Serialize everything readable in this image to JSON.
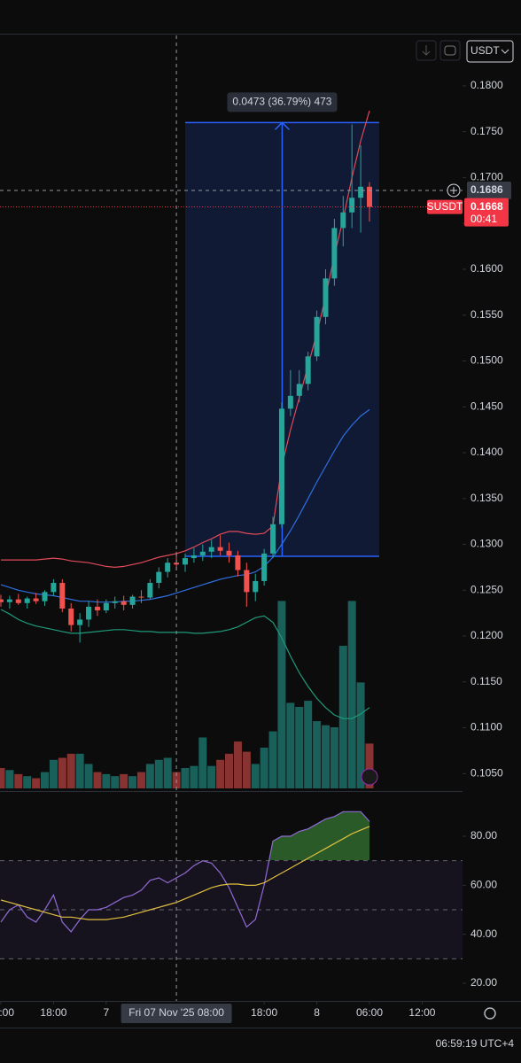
{
  "header": {
    "currency": "USDT"
  },
  "footer": {
    "clock": "06:59:19 UTC+4"
  },
  "chart_data": [
    {
      "type": "candlestick",
      "x": [
        0,
        1,
        2,
        3,
        4,
        5,
        6,
        7,
        8,
        9,
        10,
        11,
        12,
        13,
        14,
        15,
        16,
        17,
        18,
        19,
        20,
        21,
        22,
        23,
        24,
        25,
        26,
        27,
        28,
        29,
        30,
        31,
        32,
        33,
        34,
        35,
        36,
        37,
        38,
        39,
        40,
        41,
        42
      ],
      "open": [
        0.124,
        0.1237,
        0.124,
        0.1236,
        0.1241,
        0.1238,
        0.1248,
        0.1258,
        0.123,
        0.1212,
        0.1218,
        0.1232,
        0.1228,
        0.1236,
        0.1238,
        0.1234,
        0.1243,
        0.1242,
        0.1258,
        0.127,
        0.128,
        0.1278,
        0.1285,
        0.1288,
        0.1292,
        0.1297,
        0.1293,
        0.1288,
        0.1272,
        0.1248,
        0.126,
        0.129,
        0.1322,
        0.1448,
        0.1462,
        0.1475,
        0.1505,
        0.1548,
        0.159,
        0.1645,
        0.1662,
        0.1678,
        0.169
      ],
      "high": [
        0.1245,
        0.1244,
        0.1246,
        0.1243,
        0.1247,
        0.125,
        0.1262,
        0.1262,
        0.1236,
        0.1225,
        0.1238,
        0.124,
        0.124,
        0.1243,
        0.1244,
        0.1245,
        0.125,
        0.1262,
        0.1275,
        0.1285,
        0.1292,
        0.129,
        0.1296,
        0.13,
        0.1305,
        0.131,
        0.1302,
        0.1293,
        0.128,
        0.1268,
        0.1295,
        0.133,
        0.1455,
        0.149,
        0.149,
        0.151,
        0.1555,
        0.16,
        0.1655,
        0.168,
        0.1758,
        0.1735,
        0.1695
      ],
      "low": [
        0.1232,
        0.123,
        0.1234,
        0.123,
        0.1235,
        0.1233,
        0.1244,
        0.1226,
        0.1205,
        0.1193,
        0.121,
        0.1222,
        0.1225,
        0.123,
        0.1228,
        0.123,
        0.1236,
        0.124,
        0.1252,
        0.1264,
        0.1272,
        0.127,
        0.128,
        0.1282,
        0.1285,
        0.1288,
        0.128,
        0.1265,
        0.1232,
        0.1238,
        0.1255,
        0.1285,
        0.1318,
        0.144,
        0.1455,
        0.1468,
        0.15,
        0.154,
        0.1582,
        0.1625,
        0.1645,
        0.164,
        0.1652
      ],
      "close": [
        0.1237,
        0.124,
        0.1236,
        0.1241,
        0.1238,
        0.1248,
        0.1258,
        0.123,
        0.1212,
        0.1218,
        0.1232,
        0.1228,
        0.1236,
        0.1238,
        0.1234,
        0.1243,
        0.1242,
        0.1258,
        0.127,
        0.128,
        0.1278,
        0.1285,
        0.1288,
        0.1292,
        0.1297,
        0.1293,
        0.1288,
        0.1272,
        0.1248,
        0.126,
        0.129,
        0.1322,
        0.1448,
        0.1462,
        0.1475,
        0.1505,
        0.1548,
        0.159,
        0.1645,
        0.1662,
        0.1678,
        0.169,
        0.1668
      ],
      "volume": [
        100,
        90,
        70,
        60,
        50,
        80,
        140,
        150,
        170,
        170,
        120,
        80,
        70,
        60,
        70,
        60,
        80,
        120,
        140,
        150,
        80,
        100,
        110,
        250,
        110,
        140,
        170,
        230,
        180,
        120,
        200,
        280,
        920,
        420,
        400,
        430,
        330,
        310,
        300,
        700,
        920,
        520,
        220
      ],
      "volume_lim": [
        0,
        1000
      ],
      "up_color": "#26a69a",
      "down_color": "#ef5350",
      "overlays": [
        {
          "color": "#e04a5a",
          "values": [
            0.1283,
            0.1283,
            0.1283,
            0.1283,
            0.1283,
            0.1284,
            0.1285,
            0.1284,
            0.1282,
            0.1281,
            0.128,
            0.1278,
            0.1276,
            0.1275,
            0.1276,
            0.1278,
            0.128,
            0.1283,
            0.1286,
            0.1288,
            0.129,
            0.1293,
            0.1297,
            0.1302,
            0.1306,
            0.1311,
            0.1314,
            0.1314,
            0.1312,
            0.1311,
            0.1312,
            0.132,
            0.1385,
            0.1425,
            0.146,
            0.1495,
            0.153,
            0.157,
            0.1615,
            0.1655,
            0.17,
            0.174,
            0.1773
          ]
        },
        {
          "color": "#2f6fe0",
          "values": [
            0.1256,
            0.1253,
            0.125,
            0.1248,
            0.1246,
            0.1245,
            0.1244,
            0.1242,
            0.124,
            0.1238,
            0.1238,
            0.1237,
            0.1237,
            0.1237,
            0.1238,
            0.1238,
            0.1239,
            0.124,
            0.1242,
            0.1244,
            0.1247,
            0.125,
            0.1253,
            0.1256,
            0.1259,
            0.1262,
            0.1264,
            0.1266,
            0.1267,
            0.127,
            0.1276,
            0.1286,
            0.13,
            0.1315,
            0.1332,
            0.135,
            0.1368,
            0.1385,
            0.1402,
            0.1418,
            0.143,
            0.144,
            0.1447
          ]
        },
        {
          "color": "#1f9a7a",
          "values": [
            0.1229,
            0.1224,
            0.1218,
            0.1214,
            0.1211,
            0.1209,
            0.1207,
            0.1205,
            0.1203,
            0.1203,
            0.1204,
            0.1205,
            0.1206,
            0.1207,
            0.1207,
            0.1206,
            0.1205,
            0.1205,
            0.1204,
            0.1204,
            0.1204,
            0.1204,
            0.1203,
            0.1203,
            0.1204,
            0.1205,
            0.1207,
            0.121,
            0.1215,
            0.122,
            0.1222,
            0.1215,
            0.1198,
            0.1178,
            0.116,
            0.1145,
            0.1132,
            0.1122,
            0.1114,
            0.111,
            0.111,
            0.1115,
            0.1122
          ]
        }
      ],
      "xlim": [
        -0.1,
        52.6
      ],
      "xticks": [
        {
          "value": 0,
          "label": "12:00"
        },
        {
          "value": 6,
          "label": "18:00"
        },
        {
          "value": 12,
          "label": "7"
        },
        {
          "value": 30,
          "label": "18:00"
        },
        {
          "value": 36,
          "label": "8"
        },
        {
          "value": 42,
          "label": "06:00"
        },
        {
          "value": 48,
          "label": "12:00"
        }
      ],
      "ylim": [
        0.1031,
        0.1855
      ],
      "yticks": [
        {
          "value": 0.105,
          "label": "0.1050"
        },
        {
          "value": 0.11,
          "label": "0.1100"
        },
        {
          "value": 0.115,
          "label": "0.1150"
        },
        {
          "value": 0.12,
          "label": "0.1200"
        },
        {
          "value": 0.125,
          "label": "0.1250"
        },
        {
          "value": 0.13,
          "label": "0.1300"
        },
        {
          "value": 0.135,
          "label": "0.1350"
        },
        {
          "value": 0.14,
          "label": "0.1400"
        },
        {
          "value": 0.145,
          "label": "0.1450"
        },
        {
          "value": 0.15,
          "label": "0.1500"
        },
        {
          "value": 0.155,
          "label": "0.1550"
        },
        {
          "value": 0.16,
          "label": "0.1600"
        },
        {
          "value": 0.165,
          "label": "0.1650"
        },
        {
          "value": 0.17,
          "label": "0.1700"
        },
        {
          "value": 0.175,
          "label": "0.1750"
        },
        {
          "value": 0.18,
          "label": "0.1800"
        }
      ],
      "measure": {
        "x_start": 21,
        "x_end": 43.1,
        "low": 0.1287,
        "high": 0.176,
        "label": "0.0473 (36.79%) 473",
        "color": "#2962ff"
      },
      "crosshair": {
        "x": 20,
        "price": 0.1686,
        "time_label": "Fri 07 Nov '25 08:00"
      },
      "last_price": {
        "symbol": "SUSDT",
        "value": 0.1668,
        "countdown": "00:41",
        "color": "#f23645"
      }
    },
    {
      "type": "line",
      "series": [
        {
          "color": "#8f6bd6",
          "values": [
            45,
            50,
            52,
            47,
            45,
            50,
            56,
            45,
            41,
            46,
            50,
            50,
            51,
            53,
            55,
            56,
            58,
            62,
            63,
            61,
            63,
            65,
            68,
            70,
            69,
            65,
            59,
            51,
            43,
            46,
            60,
            78,
            80,
            80,
            82,
            83,
            85,
            87,
            88,
            90,
            90,
            90,
            86
          ]
        },
        {
          "color": "#e0c040",
          "values": [
            54,
            53,
            52,
            51,
            50,
            49,
            48,
            47,
            47,
            46.5,
            46,
            46,
            46,
            46.5,
            47,
            48,
            49,
            50,
            51,
            52,
            53,
            54.5,
            56,
            57.5,
            59,
            60,
            60.5,
            60.5,
            60,
            60,
            61,
            63,
            65,
            67,
            69,
            71,
            73,
            75,
            77,
            79,
            81,
            82.5,
            84
          ]
        }
      ],
      "levels": [
        30,
        50,
        70
      ],
      "overbought_color": "#3f8f3a",
      "ylim": [
        12.8,
        97.7
      ],
      "yticks": [
        {
          "value": 20,
          "label": "20.00"
        },
        {
          "value": 40,
          "label": "40.00"
        },
        {
          "value": 60,
          "label": "60.00"
        },
        {
          "value": 80,
          "label": "80.00"
        }
      ]
    }
  ]
}
